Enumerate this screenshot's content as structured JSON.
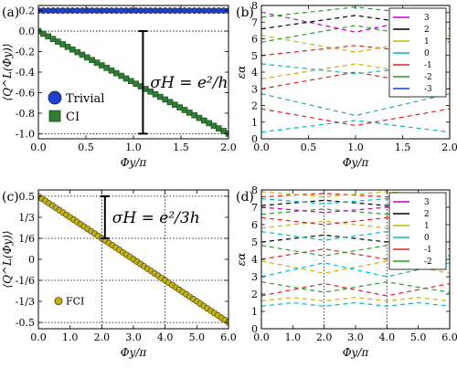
{
  "chart_data": [
    {
      "type": "scatter",
      "panel_label": "(a)",
      "xlabel": "Φy/π",
      "ylabel": "⟨Q^L(Φy)⟩",
      "xlim": [
        0,
        2
      ],
      "ylim": [
        -1.05,
        0.25
      ],
      "xticks": [
        "0.0",
        "0.5",
        "1.0",
        "1.5",
        "2.0"
      ],
      "xtick_values": [
        0,
        0.5,
        1.0,
        1.5,
        2.0
      ],
      "yticks": [
        "0.2",
        "0.0",
        "-0.2",
        "-0.4",
        "-0.6",
        "-0.8",
        "-1.0"
      ],
      "ytick_values": [
        0.2,
        0.0,
        -0.2,
        -0.4,
        -0.6,
        -0.8,
        -1.0
      ],
      "hlines": [
        0.0,
        -1.0
      ],
      "series": [
        {
          "name": "Trivial",
          "color": "#1a3fd6",
          "marker": "circle",
          "x_range": [
            0,
            2
          ],
          "n": 40,
          "y_start": 0.2,
          "y_end": 0.2
        },
        {
          "name": "CI",
          "color": "#2e7d32",
          "marker": "square",
          "x_range": [
            0,
            2
          ],
          "n": 40,
          "y_start": 0.0,
          "y_end": -1.0
        }
      ],
      "annotation": {
        "text": "σH = e²/h",
        "x": 1.1,
        "y_top": 0.0,
        "y_bottom": -1.0
      }
    },
    {
      "type": "line",
      "panel_label": "(b)",
      "xlabel": "Φy/π",
      "ylabel": "εα",
      "xlim": [
        0,
        2
      ],
      "ylim": [
        0,
        8
      ],
      "xticks": [
        "0.0",
        "0.5",
        "1.0",
        "1.5",
        "2.0"
      ],
      "xtick_values": [
        0,
        0.5,
        1.0,
        1.5,
        2.0
      ],
      "yticks": [
        "0",
        "1",
        "2",
        "3",
        "4",
        "5",
        "6",
        "7",
        "8"
      ],
      "ytick_values": [
        0,
        1,
        2,
        3,
        4,
        5,
        6,
        7,
        8
      ],
      "style": "dashed",
      "legend_position": "top-right",
      "legend": [
        {
          "label": "3",
          "color": "#c000c0"
        },
        {
          "label": "2",
          "color": "#000000"
        },
        {
          "label": "1",
          "color": "#c8b400"
        },
        {
          "label": "0",
          "color": "#00b8c8"
        },
        {
          "label": "-1",
          "color": "#e02020"
        },
        {
          "label": "-2",
          "color": "#20a020"
        },
        {
          "label": "-3",
          "color": "#1a3fd6"
        }
      ],
      "series": [
        {
          "name": "0",
          "color": "#00b8c8",
          "x": [
            0,
            1,
            2
          ],
          "y": [
            0.4,
            1.1,
            0.4
          ]
        },
        {
          "name": "0",
          "color": "#00b8c8",
          "x": [
            0,
            1,
            2
          ],
          "y": [
            2.7,
            1.4,
            2.7
          ]
        },
        {
          "name": "-1",
          "color": "#e02020",
          "x": [
            0,
            1,
            2
          ],
          "y": [
            1.8,
            0.8,
            1.8
          ]
        },
        {
          "name": "-1",
          "color": "#e02020",
          "x": [
            0,
            1,
            2
          ],
          "y": [
            3.0,
            4.0,
            3.0
          ]
        },
        {
          "name": "1",
          "color": "#c8b400",
          "x": [
            0,
            1,
            2
          ],
          "y": [
            3.6,
            4.5,
            3.6
          ]
        },
        {
          "name": "0",
          "color": "#00b8c8",
          "x": [
            0,
            1,
            2
          ],
          "y": [
            4.5,
            3.9,
            4.5
          ]
        },
        {
          "name": "-1",
          "color": "#e02020",
          "x": [
            0,
            1,
            2
          ],
          "y": [
            5.0,
            5.6,
            5.0
          ]
        },
        {
          "name": "1",
          "color": "#c8b400",
          "x": [
            0,
            1,
            2
          ],
          "y": [
            6.2,
            5.2,
            6.2
          ]
        },
        {
          "name": "-2",
          "color": "#20a020",
          "x": [
            0,
            1,
            2
          ],
          "y": [
            5.8,
            6.8,
            5.8
          ]
        },
        {
          "name": "2",
          "color": "#000000",
          "x": [
            0,
            1,
            2
          ],
          "y": [
            6.6,
            7.4,
            6.6
          ]
        },
        {
          "name": "3",
          "color": "#c000c0",
          "x": [
            0,
            1,
            2
          ],
          "y": [
            7.6,
            6.4,
            7.6
          ]
        },
        {
          "name": "-2",
          "color": "#20a020",
          "x": [
            0,
            1,
            2
          ],
          "y": [
            7.3,
            7.9,
            7.3
          ]
        }
      ]
    },
    {
      "type": "scatter",
      "panel_label": "(c)",
      "xlabel": "Φy/π",
      "ylabel": "⟨Q^L(Φy)⟩",
      "xlim": [
        0,
        6
      ],
      "ylim": [
        -0.55,
        0.55
      ],
      "xticks": [
        "0.0",
        "1.0",
        "2.0",
        "3.0",
        "4.0",
        "5.0",
        "6.0"
      ],
      "xtick_values": [
        0,
        1,
        2,
        3,
        4,
        5,
        6
      ],
      "yticks": [
        "0.5",
        "1/3",
        "1/6",
        "0",
        "-1/6",
        "-1/3",
        "-0.5"
      ],
      "ytick_values": [
        0.5,
        0.3333,
        0.1667,
        0.0,
        -0.1667,
        -0.3333,
        -0.5
      ],
      "hlines": [
        0.5,
        0.1667,
        -0.1667,
        -0.5
      ],
      "vlines": [
        2.0,
        4.0
      ],
      "series": [
        {
          "name": "FCI",
          "color": "#c8b400",
          "marker": "circle",
          "x_range": [
            0,
            6
          ],
          "n": 55,
          "y_start": 0.5,
          "y_end": -0.5
        }
      ],
      "annotation": {
        "text": "σH = e²/3h",
        "x": 2.1,
        "y_top": 0.5,
        "y_bottom": 0.1667
      }
    },
    {
      "type": "line",
      "panel_label": "(d)",
      "xlabel": "Φy/π",
      "ylabel": "εα",
      "xlim": [
        0,
        6
      ],
      "ylim": [
        0,
        8
      ],
      "xticks": [
        "0.0",
        "1.0",
        "2.0",
        "3.0",
        "4.0",
        "5.0",
        "6.0"
      ],
      "xtick_values": [
        0,
        1,
        2,
        3,
        4,
        5,
        6
      ],
      "yticks": [
        "0",
        "1",
        "2",
        "3",
        "4",
        "5",
        "6",
        "7",
        "8"
      ],
      "ytick_values": [
        0,
        1,
        2,
        3,
        4,
        5,
        6,
        7,
        8
      ],
      "vlines": [
        2.0,
        4.0
      ],
      "style": "dashed",
      "legend_position": "top-right",
      "legend": [
        {
          "label": "3",
          "color": "#c000c0"
        },
        {
          "label": "2",
          "color": "#000000"
        },
        {
          "label": "1",
          "color": "#c8b400"
        },
        {
          "label": "0",
          "color": "#00b8c8"
        },
        {
          "label": "-1",
          "color": "#e02020"
        },
        {
          "label": "-2",
          "color": "#20a020"
        }
      ],
      "series": [
        {
          "name": "0",
          "color": "#00b8c8",
          "x": [
            0,
            1,
            2,
            3,
            4,
            5,
            6
          ],
          "y": [
            1.3,
            1.5,
            1.3,
            1.5,
            1.3,
            1.5,
            1.3
          ]
        },
        {
          "name": "1",
          "color": "#c8b400",
          "x": [
            0,
            1,
            2,
            3,
            4,
            5,
            6
          ],
          "y": [
            1.6,
            1.8,
            1.6,
            1.8,
            1.6,
            1.8,
            1.6
          ]
        },
        {
          "name": "-1",
          "color": "#e02020",
          "x": [
            0,
            2,
            4,
            6
          ],
          "y": [
            1.9,
            2.6,
            1.9,
            2.6
          ]
        },
        {
          "name": "-2",
          "color": "#20a020",
          "x": [
            0,
            2,
            4,
            6
          ],
          "y": [
            2.7,
            2.1,
            2.7,
            2.1
          ]
        },
        {
          "name": "0",
          "color": "#00b8c8",
          "x": [
            0,
            2,
            4,
            6
          ],
          "y": [
            3.0,
            3.8,
            3.0,
            3.8
          ]
        },
        {
          "name": "1",
          "color": "#c8b400",
          "x": [
            0,
            2,
            4,
            6
          ],
          "y": [
            3.9,
            3.2,
            3.9,
            3.2
          ]
        },
        {
          "name": "-1",
          "color": "#e02020",
          "x": [
            0,
            2,
            4,
            6
          ],
          "y": [
            4.0,
            4.6,
            4.0,
            4.6
          ]
        },
        {
          "name": "-2",
          "color": "#20a020",
          "x": [
            0,
            2,
            4,
            6
          ],
          "y": [
            4.8,
            4.2,
            4.8,
            4.2
          ]
        },
        {
          "name": "2",
          "color": "#000000",
          "x": [
            0,
            2,
            4,
            6
          ],
          "y": [
            5.0,
            5.4,
            5.0,
            5.4
          ]
        },
        {
          "name": "0",
          "color": "#00b8c8",
          "x": [
            0,
            2,
            4,
            6
          ],
          "y": [
            5.6,
            5.1,
            5.6,
            5.1
          ]
        },
        {
          "name": "1",
          "color": "#c8b400",
          "x": [
            0,
            2,
            4,
            6
          ],
          "y": [
            5.8,
            6.2,
            5.8,
            6.2
          ]
        },
        {
          "name": "-1",
          "color": "#e02020",
          "x": [
            0,
            2,
            4,
            6
          ],
          "y": [
            6.4,
            6.0,
            6.4,
            6.0
          ]
        },
        {
          "name": "-2",
          "color": "#20a020",
          "x": [
            0,
            2,
            4,
            6
          ],
          "y": [
            6.6,
            6.9,
            6.6,
            6.9
          ]
        },
        {
          "name": "3",
          "color": "#c000c0",
          "x": [
            0,
            2,
            4,
            6
          ],
          "y": [
            7.0,
            6.7,
            7.0,
            6.7
          ]
        },
        {
          "name": "2",
          "color": "#000000",
          "x": [
            0,
            2,
            4,
            6
          ],
          "y": [
            7.1,
            7.4,
            7.1,
            7.4
          ]
        },
        {
          "name": "0",
          "color": "#00b8c8",
          "x": [
            0,
            2,
            4,
            6
          ],
          "y": [
            7.5,
            7.2,
            7.5,
            7.2
          ]
        },
        {
          "name": "-1",
          "color": "#e02020",
          "x": [
            0,
            2,
            4,
            6
          ],
          "y": [
            7.6,
            7.8,
            7.6,
            7.8
          ]
        },
        {
          "name": "1",
          "color": "#c8b400",
          "x": [
            0,
            2,
            4,
            6
          ],
          "y": [
            7.9,
            7.6,
            7.9,
            7.6
          ]
        }
      ]
    }
  ]
}
